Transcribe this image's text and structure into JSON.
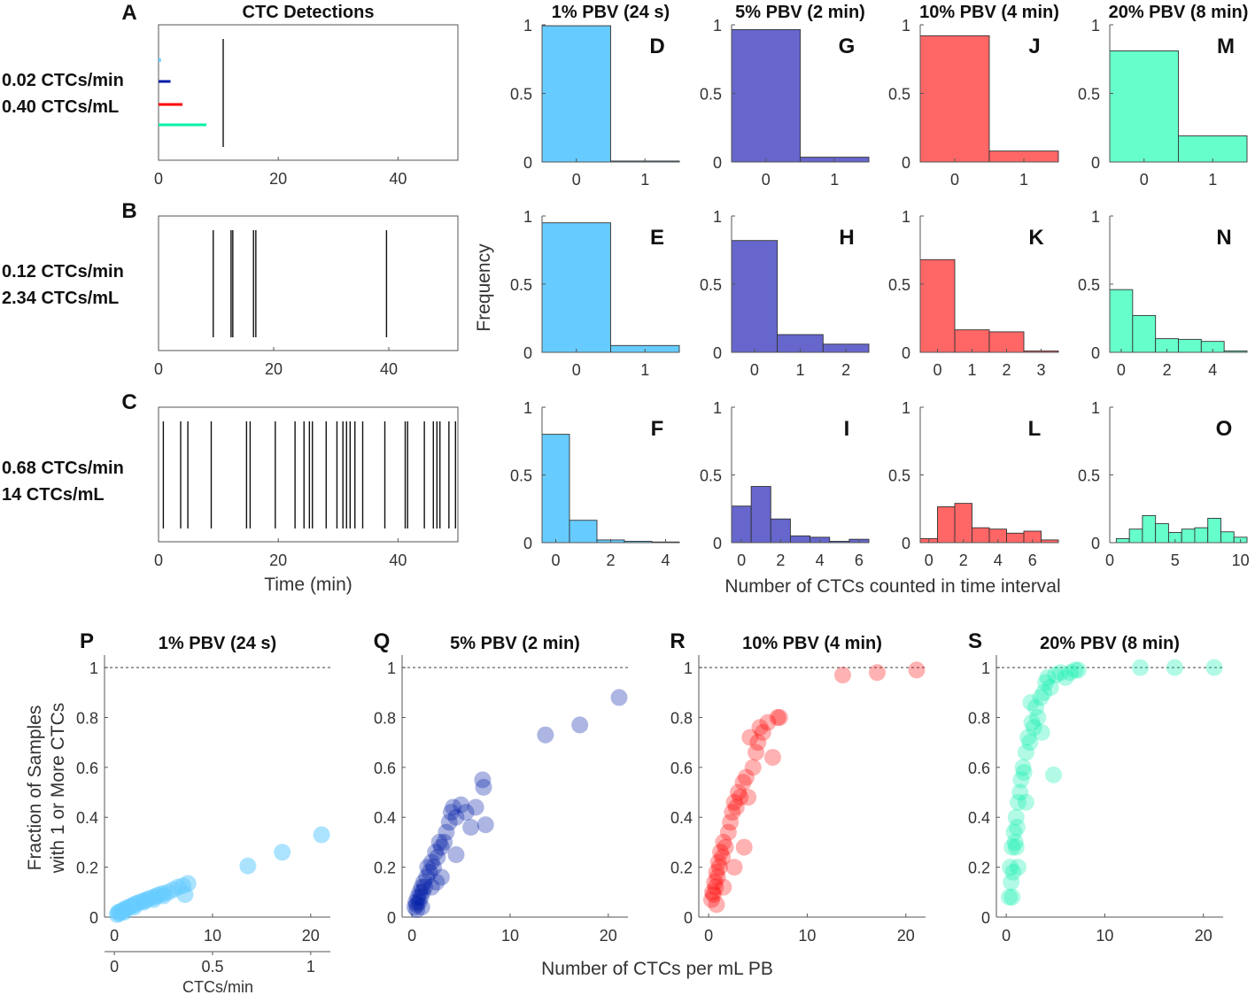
{
  "colors": {
    "c1": "#66ccff",
    "c5": "#6666cc",
    "c10": "#ff6666",
    "c20": "#66ffcc",
    "s5": "#001ba6",
    "s10": "#ff0000",
    "s20": "#00f0a8",
    "dark": "#111111"
  },
  "labels": {
    "ctc_title": "CTC Detections",
    "time_xlabel": "Time (min)",
    "freq_ylabel": "Frequency",
    "hist_xlabel": "Number of CTCs counted in time interval",
    "frac_ylabel1": "Fraction of Samples",
    "frac_ylabel2": "with 1 or More CTCs",
    "per_ml_xlabel": "Number of CTCs per mL PB",
    "ctcs_min_xlabel": "CTCs/min",
    "rate_a1": "0.02 CTCs/min",
    "rate_a2": "0.40 CTCs/mL",
    "rate_b1": "0.12 CTCs/min",
    "rate_b2": "2.34 CTCs/mL",
    "rate_c1": "0.68 CTCs/min",
    "rate_c2": "14 CTCs/mL"
  },
  "chart_data": [
    {
      "id": "A",
      "type": "event_raster",
      "title": "CTC Detections",
      "xlim": [
        0,
        50
      ],
      "xticks": [
        0,
        20,
        40
      ],
      "events": [
        10.8
      ],
      "window_bars": [
        {
          "label": "1% PBV",
          "color": "#66ccff",
          "duration": 0.4
        },
        {
          "label": "5% PBV",
          "color": "#001ba6",
          "duration": 2
        },
        {
          "label": "10% PBV",
          "color": "#ff0000",
          "duration": 4
        },
        {
          "label": "20% PBV",
          "color": "#00f0a8",
          "duration": 8
        }
      ]
    },
    {
      "id": "B",
      "type": "event_raster",
      "xlim": [
        0,
        52
      ],
      "xticks": [
        0,
        20,
        40
      ],
      "events": [
        9.5,
        12.6,
        12.9,
        16.5,
        16.9,
        39.6
      ]
    },
    {
      "id": "C",
      "type": "event_raster",
      "xlabel": "Time (min)",
      "xlim": [
        0,
        50
      ],
      "xticks": [
        0,
        20,
        40
      ],
      "events": [
        0.8,
        3.7,
        4.9,
        8.8,
        14.7,
        15.3,
        19.5,
        22.8,
        24.3,
        25.2,
        25.7,
        28.0,
        29.8,
        30.8,
        31.4,
        32.0,
        32.8,
        34.1,
        37.8,
        41.2,
        41.6,
        44.4,
        45.9,
        46.5,
        47.0,
        48.5,
        49.6
      ]
    },
    {
      "id": "D",
      "type": "histogram",
      "title": "1% PBV (24 s)",
      "color": "#66ccff",
      "xlim": [
        -0.5,
        1.5
      ],
      "xticks": [
        0,
        1
      ],
      "bins": [
        0,
        1
      ],
      "values": [
        0.993,
        0.007
      ]
    },
    {
      "id": "E",
      "type": "histogram",
      "color": "#66ccff",
      "xlim": [
        -0.5,
        1.5
      ],
      "xticks": [
        0,
        1
      ],
      "bins": [
        0,
        1
      ],
      "values": [
        0.95,
        0.05
      ]
    },
    {
      "id": "F",
      "type": "histogram",
      "color": "#66ccff",
      "xlim": [
        -0.5,
        4.5
      ],
      "xticks": [
        0,
        2,
        4
      ],
      "bins": [
        0,
        1,
        2,
        3,
        4
      ],
      "values": [
        0.8,
        0.165,
        0.02,
        0.01,
        0.005
      ]
    },
    {
      "id": "G",
      "type": "histogram",
      "title": "5% PBV (2 min)",
      "color": "#6666cc",
      "xlim": [
        -0.5,
        1.5
      ],
      "xticks": [
        0,
        1
      ],
      "bins": [
        0,
        1
      ],
      "values": [
        0.965,
        0.035
      ]
    },
    {
      "id": "H",
      "type": "histogram",
      "color": "#6666cc",
      "xlim": [
        -0.5,
        2.5
      ],
      "xticks": [
        0,
        1,
        2
      ],
      "bins": [
        0,
        1,
        2
      ],
      "values": [
        0.82,
        0.13,
        0.06
      ]
    },
    {
      "id": "I",
      "type": "histogram",
      "color": "#6666cc",
      "xlim": [
        -0.5,
        6.5
      ],
      "xticks": [
        0,
        2,
        4,
        6
      ],
      "bins": [
        0,
        1,
        2,
        3,
        4,
        5,
        6
      ],
      "values": [
        0.27,
        0.415,
        0.175,
        0.05,
        0.04,
        0.01,
        0.025
      ]
    },
    {
      "id": "J",
      "type": "histogram",
      "title": "10% PBV (4 min)",
      "color": "#ff6666",
      "xlim": [
        -0.5,
        1.5
      ],
      "xticks": [
        0,
        1
      ],
      "bins": [
        0,
        1
      ],
      "values": [
        0.92,
        0.08
      ]
    },
    {
      "id": "K",
      "type": "histogram",
      "color": "#ff6666",
      "xlim": [
        -0.5,
        3.5
      ],
      "xticks": [
        0,
        1,
        2,
        3
      ],
      "bins": [
        0,
        1,
        2,
        3
      ],
      "values": [
        0.68,
        0.165,
        0.15,
        0.01
      ]
    },
    {
      "id": "L",
      "type": "histogram",
      "color": "#ff6666",
      "xlim": [
        -0.5,
        7.5
      ],
      "xticks": [
        0,
        2,
        4,
        6
      ],
      "bins": [
        0,
        1,
        2,
        3,
        4,
        5,
        6,
        7
      ],
      "values": [
        0.03,
        0.265,
        0.29,
        0.11,
        0.1,
        0.07,
        0.085,
        0.02
      ]
    },
    {
      "id": "M",
      "type": "histogram",
      "title": "20% PBV (8 min)",
      "color": "#66ffcc",
      "xlim": [
        -0.5,
        1.5
      ],
      "xticks": [
        0,
        1
      ],
      "bins": [
        0,
        1
      ],
      "values": [
        0.81,
        0.19
      ]
    },
    {
      "id": "N",
      "type": "histogram",
      "color": "#66ffcc",
      "xlim": [
        -0.5,
        5.5
      ],
      "xticks": [
        0,
        2,
        4
      ],
      "bins": [
        0,
        1,
        2,
        3,
        4,
        5
      ],
      "values": [
        0.46,
        0.27,
        0.1,
        0.095,
        0.08,
        0.01
      ]
    },
    {
      "id": "O",
      "type": "histogram",
      "color": "#66ffcc",
      "xlim": [
        0,
        10.5
      ],
      "xticks": [
        0,
        5,
        10
      ],
      "bins": [
        1,
        2,
        3,
        4,
        5,
        6,
        7,
        8,
        9,
        10
      ],
      "values": [
        0.03,
        0.1,
        0.2,
        0.14,
        0.075,
        0.1,
        0.11,
        0.18,
        0.08,
        0.04
      ]
    },
    {
      "id": "P",
      "type": "scatter",
      "title": "1% PBV (24 s)",
      "color": "#66ccff",
      "opacity": 0.55,
      "xlim": [
        -1,
        22
      ],
      "ylim": [
        0,
        1.05
      ],
      "xticks": [
        0,
        10,
        20
      ],
      "yticks": [
        0,
        0.2,
        0.4,
        0.6,
        0.8,
        1
      ],
      "reference_line": 1,
      "secondary_axis": {
        "label": "CTCs/min",
        "ticks": [
          0,
          0.5,
          1
        ]
      },
      "points": [
        [
          0.3,
          0.01
        ],
        [
          0.4,
          0.02
        ],
        [
          0.5,
          0.015
        ],
        [
          0.6,
          0.02
        ],
        [
          0.8,
          0.025
        ],
        [
          1.0,
          0.03
        ],
        [
          1.2,
          0.035
        ],
        [
          1.5,
          0.04
        ],
        [
          1.8,
          0.045
        ],
        [
          2.0,
          0.05
        ],
        [
          2.3,
          0.055
        ],
        [
          2.6,
          0.06
        ],
        [
          3.0,
          0.065
        ],
        [
          3.3,
          0.07
        ],
        [
          3.6,
          0.075
        ],
        [
          4.0,
          0.08
        ],
        [
          4.3,
          0.085
        ],
        [
          4.6,
          0.09
        ],
        [
          5.0,
          0.095
        ],
        [
          5.5,
          0.1
        ],
        [
          6.0,
          0.11
        ],
        [
          6.5,
          0.12
        ],
        [
          7.0,
          0.125
        ],
        [
          7.5,
          0.135
        ],
        [
          7.2,
          0.09
        ],
        [
          1.0,
          0.02
        ],
        [
          2.0,
          0.04
        ],
        [
          3.0,
          0.06
        ],
        [
          4.0,
          0.07
        ],
        [
          5.0,
          0.085
        ],
        [
          13.6,
          0.205
        ],
        [
          17.1,
          0.26
        ],
        [
          21.1,
          0.33
        ]
      ]
    },
    {
      "id": "Q",
      "type": "scatter",
      "title": "5% PBV (2 min)",
      "color": "#001ba6",
      "opacity": 0.32,
      "xlim": [
        -1,
        22
      ],
      "ylim": [
        0,
        1.05
      ],
      "xticks": [
        0,
        10,
        20
      ],
      "yticks": [
        0,
        0.2,
        0.4,
        0.6,
        0.8,
        1
      ],
      "reference_line": 1,
      "points": [
        [
          0.3,
          0.04
        ],
        [
          0.4,
          0.06
        ],
        [
          0.5,
          0.05
        ],
        [
          0.6,
          0.08
        ],
        [
          0.7,
          0.06
        ],
        [
          0.8,
          0.1
        ],
        [
          0.9,
          0.08
        ],
        [
          1.0,
          0.12
        ],
        [
          1.1,
          0.1
        ],
        [
          1.2,
          0.14
        ],
        [
          1.3,
          0.12
        ],
        [
          1.5,
          0.16
        ],
        [
          1.6,
          0.2
        ],
        [
          1.8,
          0.18
        ],
        [
          2.0,
          0.22
        ],
        [
          2.2,
          0.2
        ],
        [
          2.4,
          0.26
        ],
        [
          2.6,
          0.24
        ],
        [
          2.8,
          0.3
        ],
        [
          3.0,
          0.28
        ],
        [
          3.3,
          0.3
        ],
        [
          3.5,
          0.34
        ],
        [
          3.8,
          0.38
        ],
        [
          4.0,
          0.42
        ],
        [
          4.2,
          0.44
        ],
        [
          4.5,
          0.4
        ],
        [
          5.0,
          0.45
        ],
        [
          5.5,
          0.42
        ],
        [
          6.0,
          0.36
        ],
        [
          6.5,
          0.44
        ],
        [
          7.2,
          0.55
        ],
        [
          7.3,
          0.52
        ],
        [
          7.5,
          0.37
        ],
        [
          3.0,
          0.16
        ],
        [
          2.0,
          0.12
        ],
        [
          1.0,
          0.04
        ],
        [
          0.5,
          0.03
        ],
        [
          4.5,
          0.25
        ],
        [
          2.5,
          0.14
        ],
        [
          13.6,
          0.73
        ],
        [
          17.1,
          0.77
        ],
        [
          21.1,
          0.88
        ]
      ]
    },
    {
      "id": "R",
      "type": "scatter",
      "title": "10% PBV (4 min)",
      "color": "#ff0000",
      "opacity": 0.3,
      "xlim": [
        -1,
        22
      ],
      "ylim": [
        0,
        1.05
      ],
      "xticks": [
        0,
        10,
        20
      ],
      "yticks": [
        0,
        0.2,
        0.4,
        0.6,
        0.8,
        1
      ],
      "reference_line": 1,
      "points": [
        [
          0.3,
          0.07
        ],
        [
          0.4,
          0.1
        ],
        [
          0.5,
          0.09
        ],
        [
          0.6,
          0.14
        ],
        [
          0.7,
          0.12
        ],
        [
          0.8,
          0.18
        ],
        [
          0.9,
          0.16
        ],
        [
          1.0,
          0.22
        ],
        [
          1.1,
          0.2
        ],
        [
          1.2,
          0.26
        ],
        [
          1.4,
          0.24
        ],
        [
          1.5,
          0.3
        ],
        [
          1.7,
          0.28
        ],
        [
          2.0,
          0.34
        ],
        [
          2.2,
          0.38
        ],
        [
          2.4,
          0.42
        ],
        [
          2.6,
          0.46
        ],
        [
          2.8,
          0.44
        ],
        [
          3.0,
          0.5
        ],
        [
          3.2,
          0.48
        ],
        [
          3.5,
          0.54
        ],
        [
          3.8,
          0.56
        ],
        [
          4.0,
          0.48
        ],
        [
          4.5,
          0.6
        ],
        [
          4.8,
          0.66
        ],
        [
          5.0,
          0.7
        ],
        [
          5.5,
          0.74
        ],
        [
          6.0,
          0.78
        ],
        [
          6.5,
          0.64
        ],
        [
          7.0,
          0.8
        ],
        [
          7.2,
          0.8
        ],
        [
          5.2,
          0.76
        ],
        [
          4.2,
          0.72
        ],
        [
          3.6,
          0.28
        ],
        [
          2.6,
          0.2
        ],
        [
          1.5,
          0.12
        ],
        [
          0.8,
          0.05
        ],
        [
          13.6,
          0.97
        ],
        [
          17.1,
          0.98
        ],
        [
          21.1,
          0.99
        ]
      ]
    },
    {
      "id": "S",
      "type": "scatter",
      "title": "20% PBV (8 min)",
      "color": "#00f0a8",
      "opacity": 0.3,
      "xlim": [
        -1,
        22
      ],
      "ylim": [
        0,
        1.05
      ],
      "xticks": [
        0,
        10,
        20
      ],
      "yticks": [
        0,
        0.2,
        0.4,
        0.6,
        0.8,
        1
      ],
      "reference_line": 1,
      "points": [
        [
          0.3,
          0.08
        ],
        [
          0.4,
          0.2
        ],
        [
          0.5,
          0.14
        ],
        [
          0.6,
          0.28
        ],
        [
          0.7,
          0.18
        ],
        [
          0.8,
          0.34
        ],
        [
          0.9,
          0.3
        ],
        [
          1.0,
          0.4
        ],
        [
          1.1,
          0.36
        ],
        [
          1.2,
          0.46
        ],
        [
          1.4,
          0.5
        ],
        [
          1.5,
          0.55
        ],
        [
          1.7,
          0.6
        ],
        [
          1.8,
          0.58
        ],
        [
          2.0,
          0.66
        ],
        [
          2.2,
          0.72
        ],
        [
          2.4,
          0.7
        ],
        [
          2.6,
          0.78
        ],
        [
          2.8,
          0.76
        ],
        [
          3.0,
          0.84
        ],
        [
          3.2,
          0.8
        ],
        [
          3.5,
          0.88
        ],
        [
          3.8,
          0.9
        ],
        [
          4.0,
          0.94
        ],
        [
          4.2,
          0.96
        ],
        [
          4.5,
          0.92
        ],
        [
          5.0,
          0.97
        ],
        [
          5.5,
          0.98
        ],
        [
          6.0,
          0.96
        ],
        [
          6.5,
          0.98
        ],
        [
          7.0,
          0.99
        ],
        [
          7.3,
          0.99
        ],
        [
          4.8,
          0.57
        ],
        [
          3.6,
          0.74
        ],
        [
          2.5,
          0.86
        ],
        [
          1.2,
          0.2
        ],
        [
          0.6,
          0.08
        ],
        [
          2.0,
          0.46
        ],
        [
          1.0,
          0.28
        ],
        [
          13.6,
          1.0
        ],
        [
          17.1,
          1.0
        ],
        [
          21.1,
          1.0
        ]
      ]
    }
  ]
}
